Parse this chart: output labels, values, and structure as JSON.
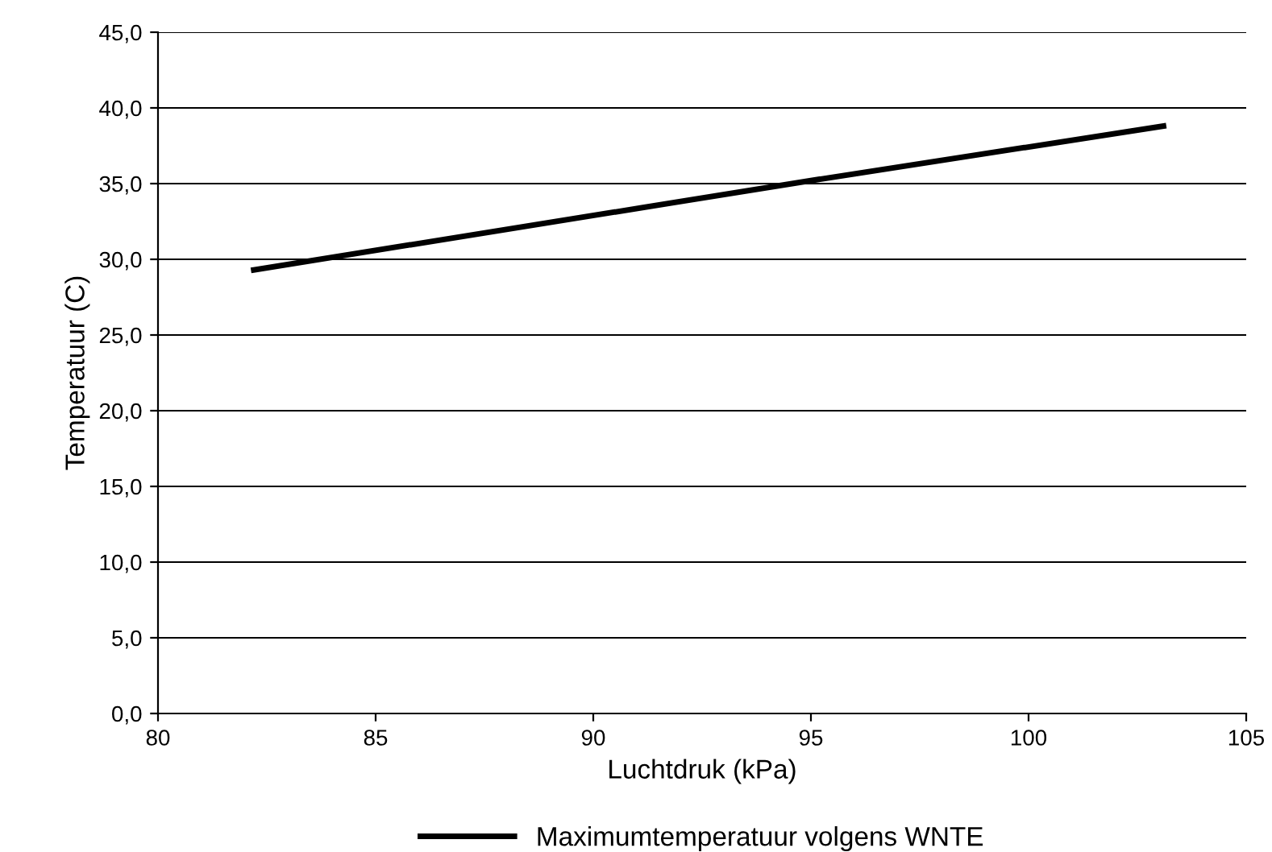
{
  "chart_data": {
    "type": "line",
    "xlabel": "Luchtdruk (kPa)",
    "ylabel": "Temperatuur (C)",
    "series": [
      {
        "name": "Maximumtemperatuur volgens WNTE",
        "color": "#000000",
        "x": [
          82.2,
          95,
          103.1
        ],
        "values": [
          29.3,
          35.2,
          38.8
        ]
      }
    ],
    "xlim": [
      80,
      105
    ],
    "xticks": [
      80,
      85,
      90,
      95,
      100,
      105
    ],
    "ylim": [
      0,
      45
    ],
    "yticks": [
      {
        "value": 0,
        "label": "0,0"
      },
      {
        "value": 5,
        "label": "5,0"
      },
      {
        "value": 10,
        "label": "10,0"
      },
      {
        "value": 15,
        "label": "15,0"
      },
      {
        "value": 20,
        "label": "20,0"
      },
      {
        "value": 25,
        "label": "25,0"
      },
      {
        "value": 30,
        "label": "30,0"
      },
      {
        "value": 35,
        "label": "35,0"
      },
      {
        "value": 40,
        "label": "40,0"
      },
      {
        "value": 45,
        "label": "45,0"
      }
    ],
    "grid": "y",
    "legend": "bottom",
    "marker": "none",
    "line_style": "solid"
  }
}
